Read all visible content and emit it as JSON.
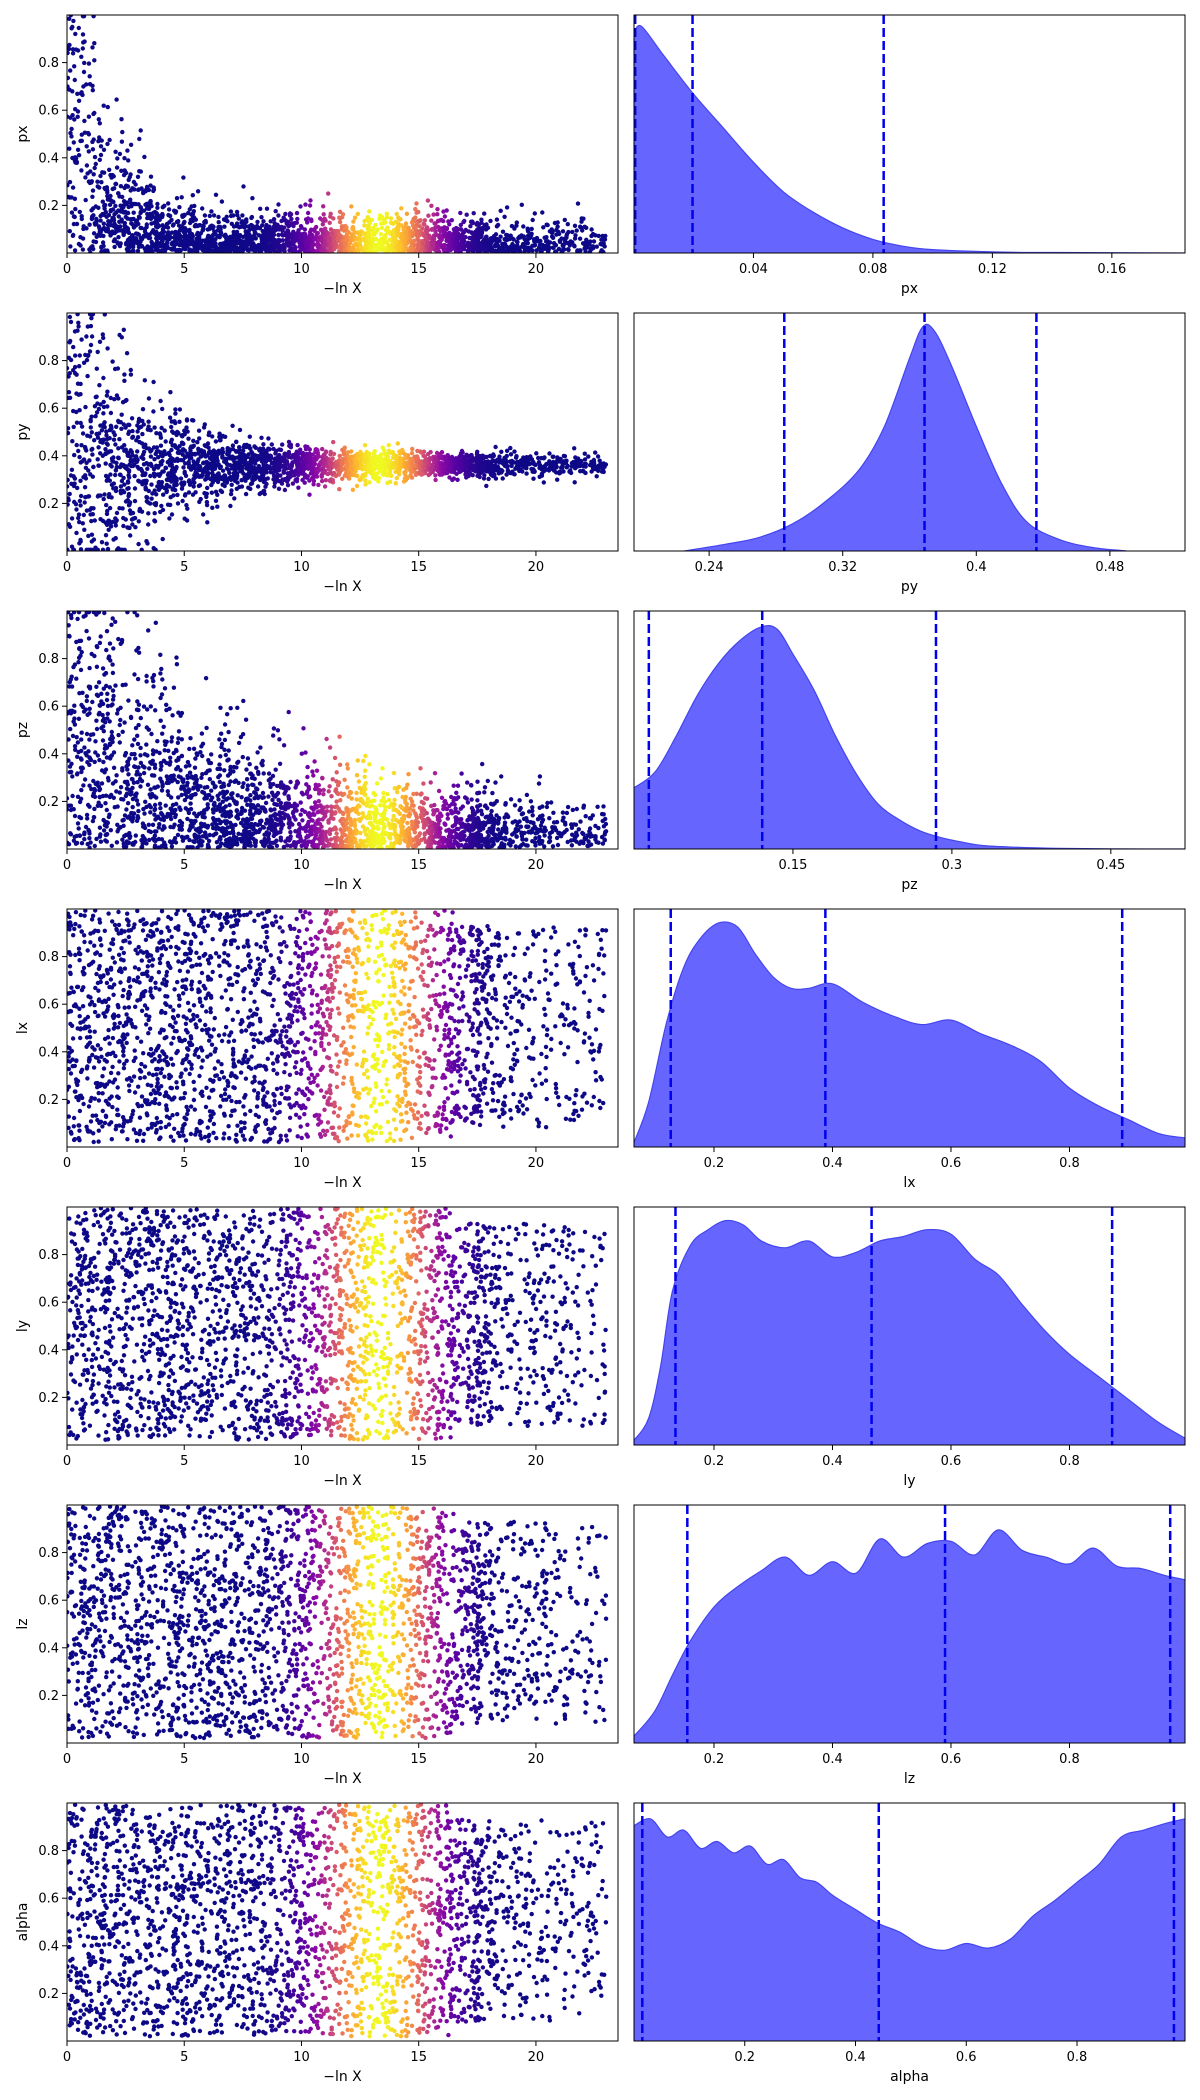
{
  "scatter_xlabel": "−ln X",
  "chart_data": [
    {
      "type": "scatter",
      "param": "px",
      "xlabel": "−ln X",
      "ylabel": "px",
      "xlim": [
        0,
        23.5
      ],
      "ylim": [
        0,
        1
      ],
      "xticks": [
        0,
        5,
        10,
        15,
        20
      ],
      "yticks": [
        0.2,
        0.4,
        0.6,
        0.8
      ],
      "profile": "decay",
      "peak_x": 13.3,
      "x_max": 23,
      "colormap": "plasma"
    },
    {
      "type": "area",
      "param": "px",
      "xlabel": "px",
      "xlim": [
        0.0,
        0.1845
      ],
      "ylim": [
        0,
        1.05
      ],
      "xticks": [
        0.04,
        0.08,
        0.12,
        0.16
      ],
      "quantiles": [
        0.0004,
        0.0196,
        0.0836
      ],
      "x": [
        0.0,
        0.0025,
        0.01,
        0.02,
        0.03,
        0.04,
        0.05,
        0.06,
        0.07,
        0.08,
        0.09,
        0.1,
        0.12,
        0.14,
        0.1845
      ],
      "density": [
        0.97,
        1.0,
        0.87,
        0.7,
        0.55,
        0.4,
        0.27,
        0.18,
        0.11,
        0.06,
        0.03,
        0.015,
        0.005,
        0.002,
        0.0
      ]
    },
    {
      "type": "scatter",
      "param": "py",
      "xlabel": "−ln X",
      "ylabel": "py",
      "xlim": [
        0,
        23.5
      ],
      "ylim": [
        0,
        1
      ],
      "xticks": [
        0,
        5,
        10,
        15,
        20
      ],
      "yticks": [
        0.2,
        0.4,
        0.6,
        0.8
      ],
      "profile": "funnel",
      "center": 0.36,
      "peak_x": 13.3,
      "x_max": 23,
      "colormap": "plasma"
    },
    {
      "type": "area",
      "param": "py",
      "xlabel": "py",
      "xlim": [
        0.195,
        0.525
      ],
      "ylim": [
        0,
        1.05
      ],
      "xticks": [
        0.24,
        0.32,
        0.4,
        0.48
      ],
      "quantiles": [
        0.285,
        0.369,
        0.436
      ],
      "x": [
        0.225,
        0.25,
        0.27,
        0.29,
        0.31,
        0.33,
        0.345,
        0.36,
        0.368,
        0.375,
        0.385,
        0.4,
        0.415,
        0.43,
        0.45,
        0.47,
        0.49
      ],
      "density": [
        0.0,
        0.03,
        0.06,
        0.12,
        0.22,
        0.36,
        0.55,
        0.85,
        0.99,
        0.97,
        0.82,
        0.55,
        0.3,
        0.13,
        0.05,
        0.015,
        0.0
      ]
    },
    {
      "type": "scatter",
      "param": "pz",
      "xlabel": "−ln X",
      "ylabel": "pz",
      "xlim": [
        0,
        23.5
      ],
      "ylim": [
        0,
        1
      ],
      "xticks": [
        0,
        5,
        10,
        15,
        20
      ],
      "yticks": [
        0.2,
        0.4,
        0.6,
        0.8
      ],
      "profile": "decay_slow",
      "peak_x": 13.3,
      "x_max": 23,
      "colormap": "plasma"
    },
    {
      "type": "area",
      "param": "pz",
      "xlabel": "pz",
      "xlim": [
        0.0,
        0.52
      ],
      "ylim": [
        0,
        1.05
      ],
      "xticks": [
        0.15,
        0.3,
        0.45
      ],
      "quantiles": [
        0.014,
        0.121,
        0.285
      ],
      "x": [
        0.0,
        0.02,
        0.04,
        0.06,
        0.08,
        0.1,
        0.12,
        0.135,
        0.15,
        0.17,
        0.19,
        0.21,
        0.23,
        0.25,
        0.27,
        0.29,
        0.31,
        0.33,
        0.36,
        0.4,
        0.45,
        0.52
      ],
      "density": [
        0.27,
        0.34,
        0.5,
        0.68,
        0.82,
        0.92,
        0.98,
        0.97,
        0.86,
        0.7,
        0.5,
        0.33,
        0.2,
        0.13,
        0.08,
        0.05,
        0.03,
        0.015,
        0.008,
        0.003,
        0.001,
        0.0
      ]
    },
    {
      "type": "scatter",
      "param": "lx",
      "xlabel": "−ln X",
      "ylabel": "lx",
      "xlim": [
        0,
        23.5
      ],
      "ylim": [
        0,
        1
      ],
      "xticks": [
        0,
        5,
        10,
        15,
        20
      ],
      "yticks": [
        0.2,
        0.4,
        0.6,
        0.8
      ],
      "profile": "uniform",
      "peak_x": 13.3,
      "x_max": 23,
      "colormap": "plasma"
    },
    {
      "type": "area",
      "param": "lx",
      "xlabel": "lx",
      "xlim": [
        0.065,
        0.995
      ],
      "ylim": [
        0,
        1.05
      ],
      "xticks": [
        0.2,
        0.4,
        0.6,
        0.8
      ],
      "quantiles": [
        0.127,
        0.388,
        0.889
      ],
      "x": [
        0.065,
        0.09,
        0.12,
        0.15,
        0.18,
        0.21,
        0.24,
        0.27,
        0.3,
        0.33,
        0.36,
        0.4,
        0.45,
        0.5,
        0.55,
        0.6,
        0.65,
        0.7,
        0.75,
        0.8,
        0.85,
        0.9,
        0.95,
        0.995
      ],
      "density": [
        0.02,
        0.2,
        0.55,
        0.8,
        0.93,
        0.99,
        0.97,
        0.85,
        0.75,
        0.7,
        0.7,
        0.72,
        0.64,
        0.58,
        0.54,
        0.56,
        0.5,
        0.45,
        0.38,
        0.26,
        0.18,
        0.12,
        0.06,
        0.04
      ]
    },
    {
      "type": "scatter",
      "param": "ly",
      "xlabel": "−ln X",
      "ylabel": "ly",
      "xlim": [
        0,
        23.5
      ],
      "ylim": [
        0,
        1
      ],
      "xticks": [
        0,
        5,
        10,
        15,
        20
      ],
      "yticks": [
        0.2,
        0.4,
        0.6,
        0.8
      ],
      "profile": "uniform",
      "peak_x": 13.3,
      "x_max": 23,
      "colormap": "plasma"
    },
    {
      "type": "area",
      "param": "ly",
      "xlabel": "ly",
      "xlim": [
        0.065,
        0.995
      ],
      "ylim": [
        0,
        1.05
      ],
      "xticks": [
        0.2,
        0.4,
        0.6,
        0.8
      ],
      "quantiles": [
        0.135,
        0.466,
        0.872
      ],
      "x": [
        0.065,
        0.09,
        0.11,
        0.13,
        0.16,
        0.19,
        0.22,
        0.25,
        0.28,
        0.32,
        0.36,
        0.4,
        0.44,
        0.48,
        0.52,
        0.56,
        0.6,
        0.64,
        0.68,
        0.72,
        0.76,
        0.8,
        0.85,
        0.9,
        0.95,
        0.995
      ],
      "density": [
        0.02,
        0.12,
        0.35,
        0.68,
        0.88,
        0.95,
        0.99,
        0.97,
        0.9,
        0.87,
        0.9,
        0.83,
        0.85,
        0.9,
        0.92,
        0.95,
        0.93,
        0.82,
        0.75,
        0.62,
        0.5,
        0.4,
        0.3,
        0.2,
        0.1,
        0.03
      ]
    },
    {
      "type": "scatter",
      "param": "lz",
      "xlabel": "−ln X",
      "ylabel": "lz",
      "xlim": [
        0,
        23.5
      ],
      "ylim": [
        0,
        1
      ],
      "xticks": [
        0,
        5,
        10,
        15,
        20
      ],
      "yticks": [
        0.2,
        0.4,
        0.6,
        0.8
      ],
      "profile": "uniform",
      "peak_x": 13.3,
      "x_max": 23,
      "colormap": "plasma"
    },
    {
      "type": "area",
      "param": "lz",
      "xlabel": "lz",
      "xlim": [
        0.065,
        0.995
      ],
      "ylim": [
        0,
        1.05
      ],
      "xticks": [
        0.2,
        0.4,
        0.6,
        0.8
      ],
      "quantiles": [
        0.155,
        0.59,
        0.97
      ],
      "x": [
        0.065,
        0.1,
        0.13,
        0.16,
        0.2,
        0.24,
        0.28,
        0.32,
        0.36,
        0.4,
        0.44,
        0.48,
        0.52,
        0.56,
        0.6,
        0.64,
        0.68,
        0.72,
        0.76,
        0.8,
        0.84,
        0.88,
        0.92,
        0.96,
        0.995
      ],
      "density": [
        0.03,
        0.14,
        0.3,
        0.45,
        0.6,
        0.69,
        0.76,
        0.82,
        0.74,
        0.8,
        0.75,
        0.9,
        0.82,
        0.88,
        0.89,
        0.83,
        0.94,
        0.85,
        0.82,
        0.79,
        0.86,
        0.78,
        0.77,
        0.74,
        0.72
      ]
    },
    {
      "type": "scatter",
      "param": "alpha",
      "xlabel": "−ln X",
      "ylabel": "alpha",
      "xlim": [
        0,
        23.5
      ],
      "ylim": [
        0,
        1
      ],
      "xticks": [
        0,
        5,
        10,
        15,
        20
      ],
      "yticks": [
        0.2,
        0.4,
        0.6,
        0.8
      ],
      "profile": "uniform",
      "peak_x": 13.3,
      "x_max": 23,
      "colormap": "plasma"
    },
    {
      "type": "area",
      "param": "alpha",
      "xlabel": "alpha",
      "xlim": [
        0.0,
        0.995
      ],
      "ylim": [
        0,
        1.05
      ],
      "xticks": [
        0.2,
        0.4,
        0.6,
        0.8
      ],
      "quantiles": [
        0.015,
        0.442,
        0.975
      ],
      "x": [
        0.0,
        0.03,
        0.06,
        0.09,
        0.12,
        0.15,
        0.18,
        0.21,
        0.24,
        0.27,
        0.3,
        0.33,
        0.36,
        0.4,
        0.44,
        0.48,
        0.52,
        0.56,
        0.6,
        0.64,
        0.68,
        0.72,
        0.76,
        0.8,
        0.84,
        0.88,
        0.92,
        0.96,
        0.995
      ],
      "density": [
        0.95,
        0.98,
        0.9,
        0.93,
        0.85,
        0.88,
        0.83,
        0.86,
        0.78,
        0.8,
        0.72,
        0.7,
        0.64,
        0.58,
        0.52,
        0.48,
        0.42,
        0.4,
        0.43,
        0.41,
        0.45,
        0.55,
        0.62,
        0.7,
        0.78,
        0.9,
        0.93,
        0.96,
        0.98
      ]
    }
  ]
}
